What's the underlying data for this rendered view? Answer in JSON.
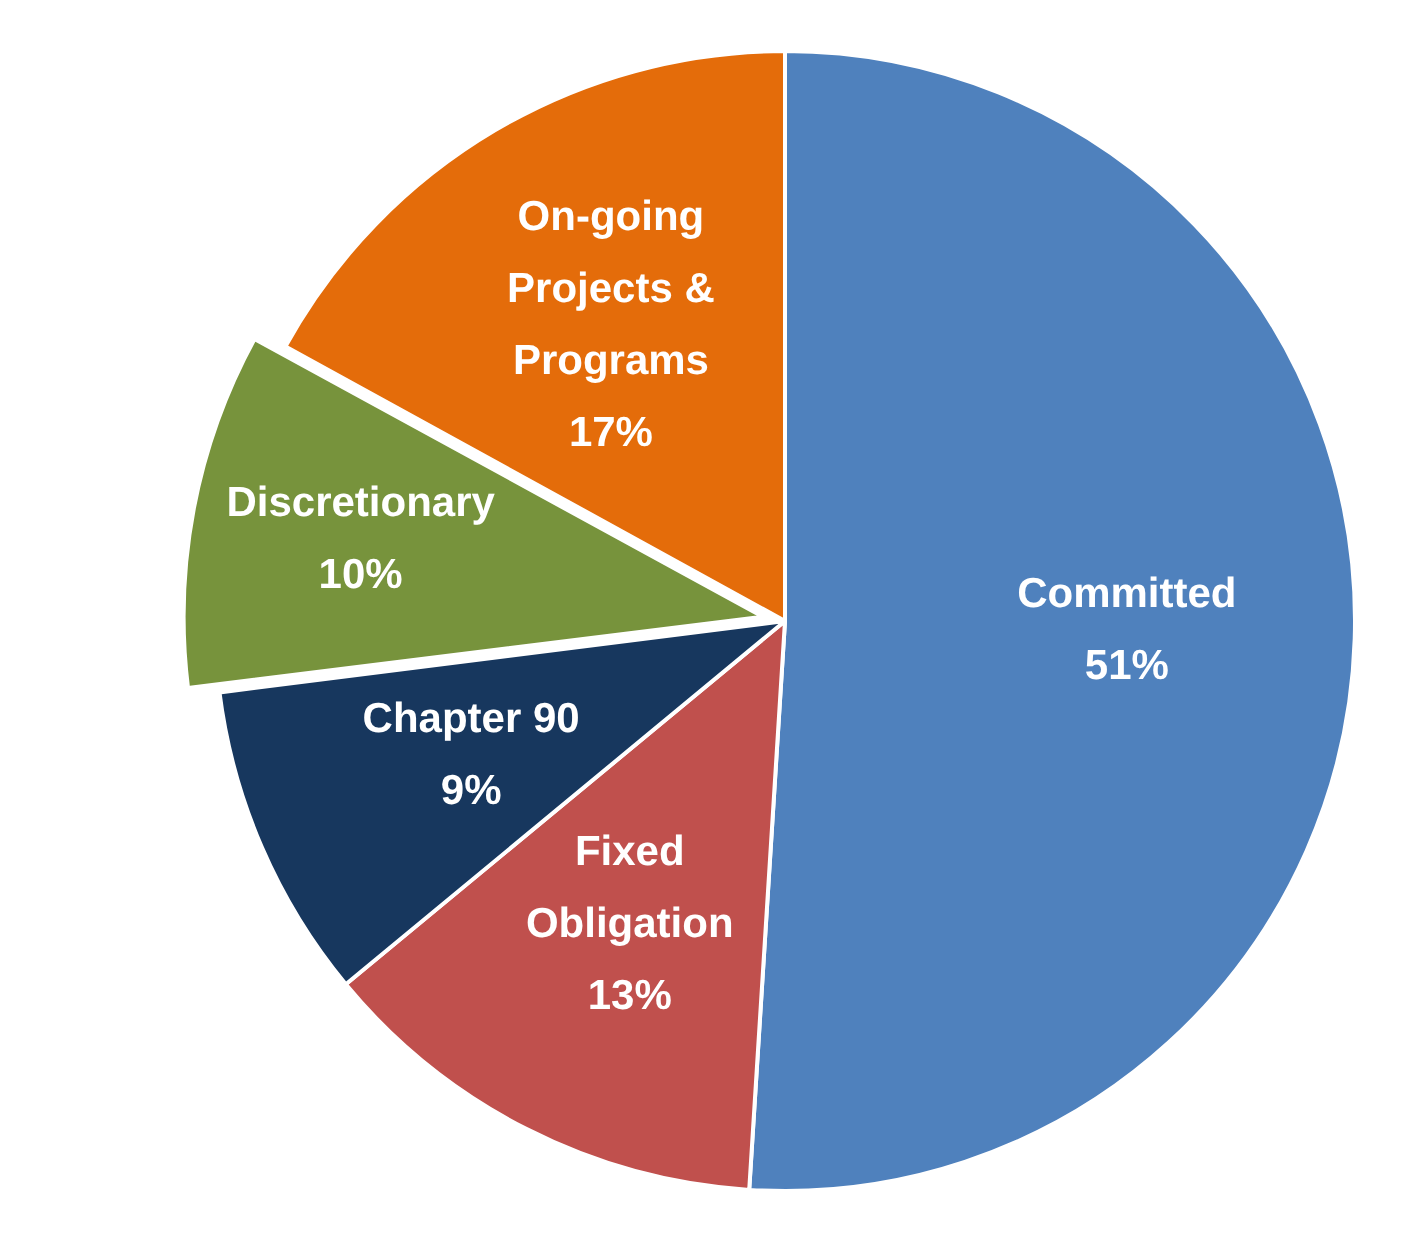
{
  "chart_data": {
    "type": "pie",
    "categories": [
      "Committed",
      "Fixed Obligation",
      "Chapter 90",
      "Discretionary",
      "On-going Projects & Programs"
    ],
    "values": [
      51,
      13,
      9,
      10,
      17
    ],
    "colors": [
      "#4f81bd",
      "#c0504d",
      "#17375e",
      "#77933c",
      "#e46c0a"
    ],
    "value_labels": [
      "51%",
      "13%",
      "9%",
      "10%",
      "17%"
    ],
    "legend": false
  }
}
